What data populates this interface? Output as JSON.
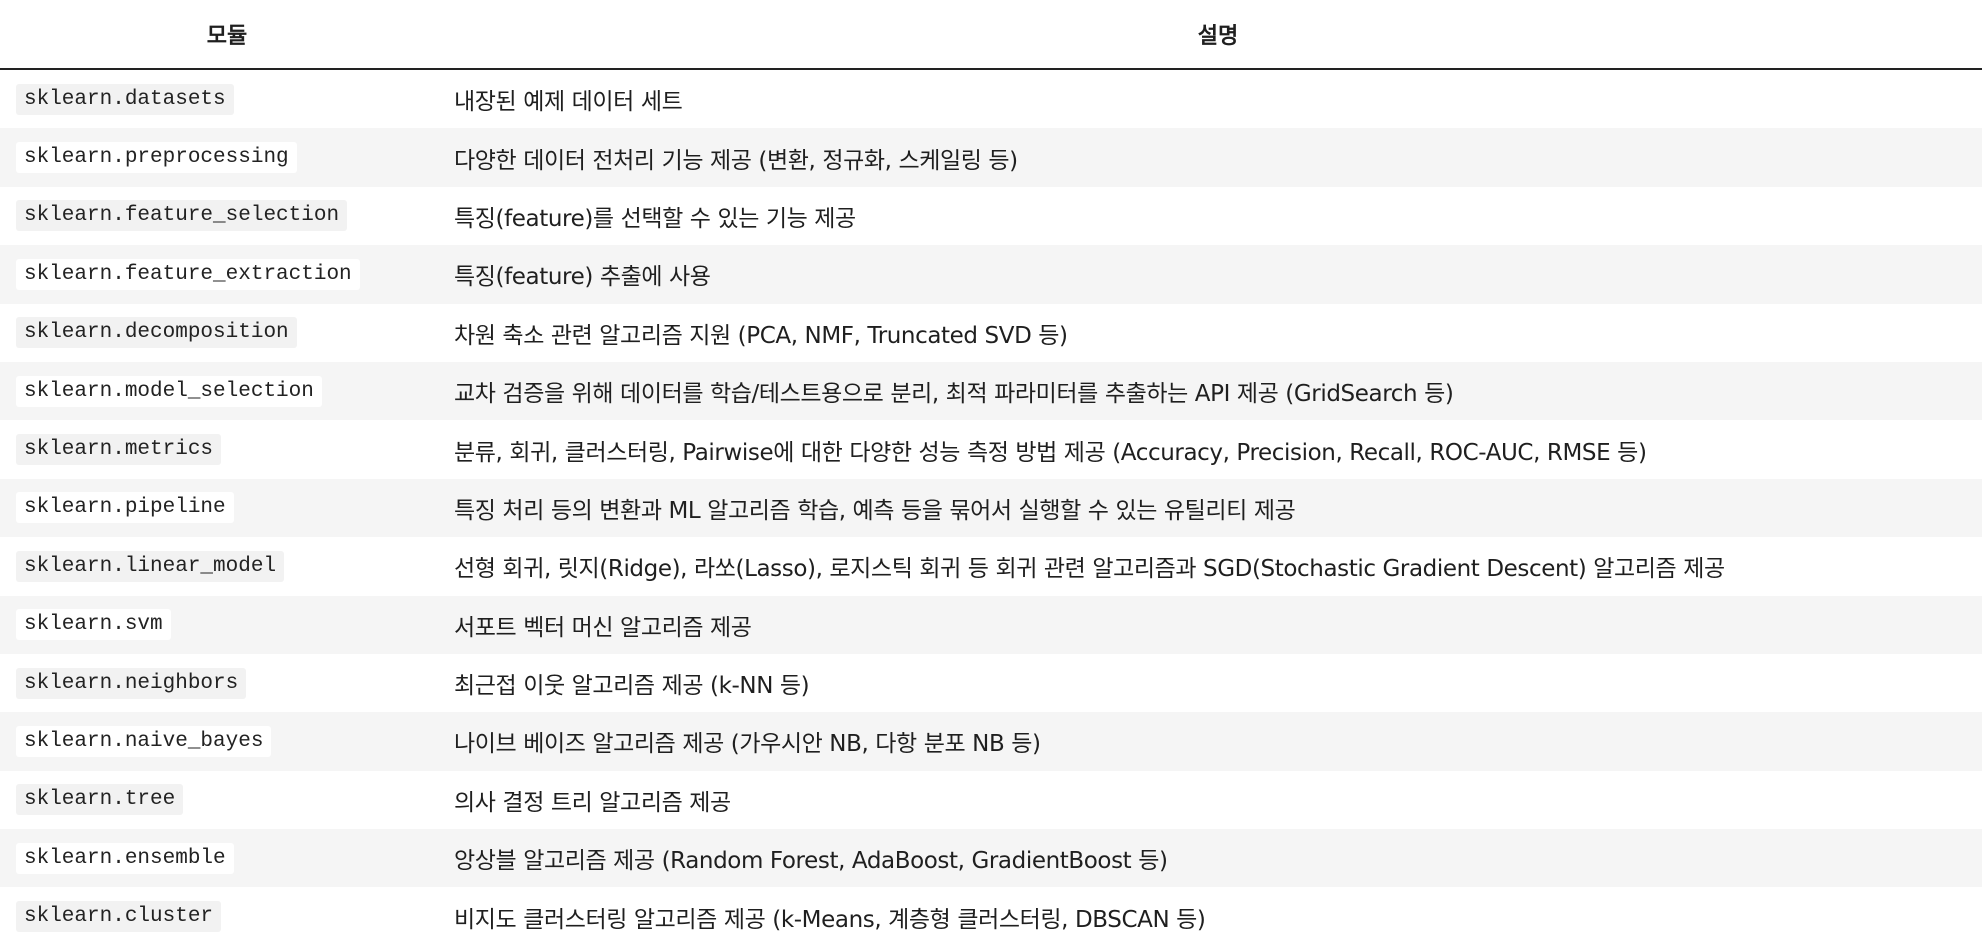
{
  "header": {
    "module": "모듈",
    "description": "설명"
  },
  "rows": [
    {
      "module": "sklearn.datasets",
      "description": "내장된 예제 데이터 세트"
    },
    {
      "module": "sklearn.preprocessing",
      "description": "다양한 데이터 전처리 기능 제공 (변환, 정규화, 스케일링 등)"
    },
    {
      "module": "sklearn.feature_selection",
      "description": "특징(feature)를 선택할 수 있는 기능 제공"
    },
    {
      "module": "sklearn.feature_extraction",
      "description": "특징(feature) 추출에 사용"
    },
    {
      "module": "sklearn.decomposition",
      "description": "차원 축소 관련 알고리즘 지원 (PCA, NMF, Truncated SVD 등)"
    },
    {
      "module": "sklearn.model_selection",
      "description": "교차 검증을 위해 데이터를 학습/테스트용으로 분리, 최적 파라미터를 추출하는 API 제공 (GridSearch 등)"
    },
    {
      "module": "sklearn.metrics",
      "description": "분류, 회귀, 클러스터링, Pairwise에 대한 다양한 성능 측정 방법 제공 (Accuracy, Precision, Recall, ROC-AUC, RMSE 등)"
    },
    {
      "module": "sklearn.pipeline",
      "description": "특징 처리 등의 변환과 ML 알고리즘 학습, 예측 등을 묶어서 실행할 수 있는 유틸리티 제공"
    },
    {
      "module": "sklearn.linear_model",
      "description": "선형 회귀, 릿지(Ridge), 라쏘(Lasso), 로지스틱 회귀 등 회귀 관련 알고리즘과 SGD(Stochastic Gradient Descent) 알고리즘 제공"
    },
    {
      "module": "sklearn.svm",
      "description": "서포트 벡터 머신 알고리즘 제공"
    },
    {
      "module": "sklearn.neighbors",
      "description": "최근접 이웃 알고리즘 제공 (k-NN 등)"
    },
    {
      "module": "sklearn.naive_bayes",
      "description": "나이브 베이즈 알고리즘 제공 (가우시안 NB, 다항 분포 NB 등)"
    },
    {
      "module": "sklearn.tree",
      "description": "의사 결정 트리 알고리즘 제공"
    },
    {
      "module": "sklearn.ensemble",
      "description": "앙상블 알고리즘 제공 (Random Forest, AdaBoost, GradientBoost 등)"
    },
    {
      "module": "sklearn.cluster",
      "description": "비지도 클러스터링 알고리즘 제공 (k-Means, 계층형 클러스터링, DBSCAN 등)"
    }
  ]
}
